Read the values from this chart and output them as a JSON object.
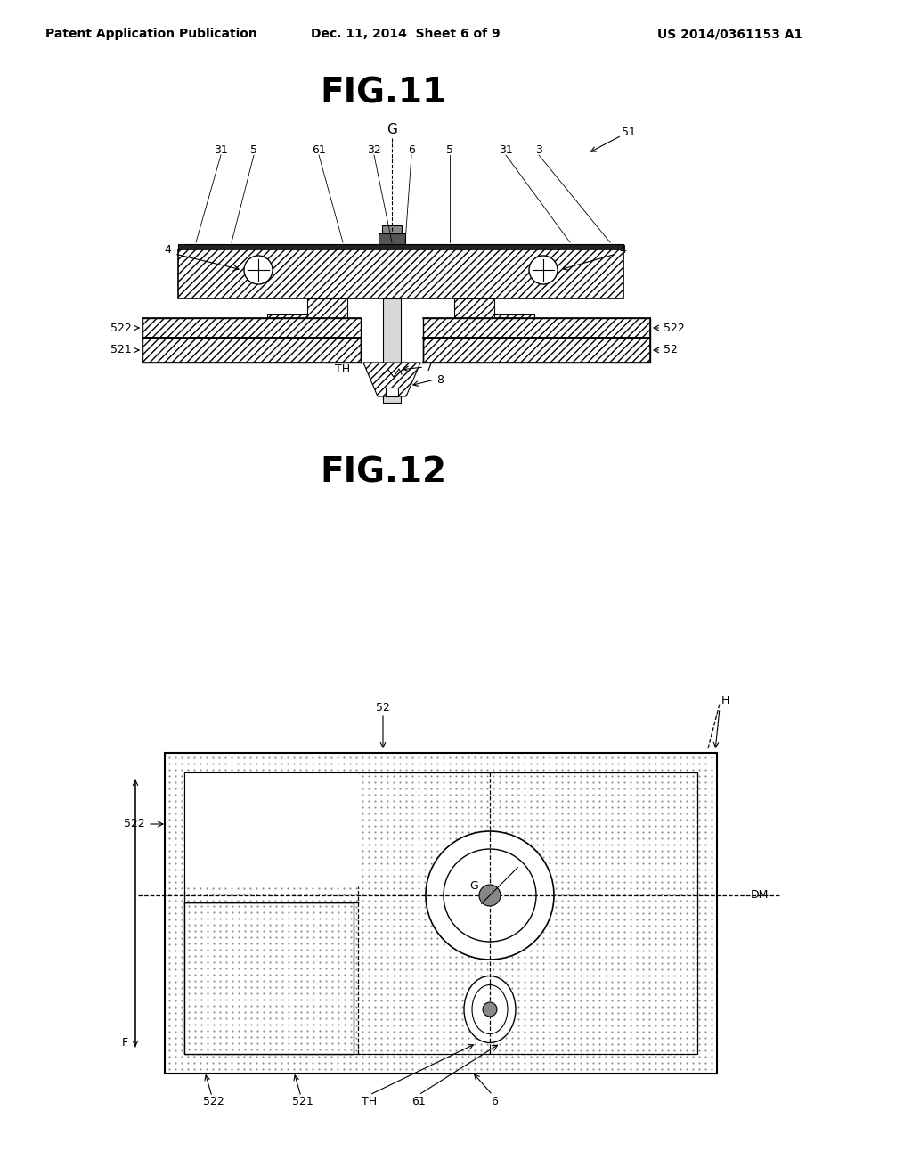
{
  "bg_color": "#ffffff",
  "header_left": "Patent Application Publication",
  "header_center": "Dec. 11, 2014  Sheet 6 of 9",
  "header_right": "US 2014/0361153 A1",
  "fig11_title": "FIG.11",
  "fig12_title": "FIG.12",
  "fig11": {
    "label_G": "G",
    "label_51": "51",
    "label_31_left": "31",
    "label_5_left": "5",
    "label_61": "61",
    "label_32": "32",
    "label_6": "6",
    "label_5_right": "5",
    "label_31_right": "31",
    "label_3": "3",
    "label_4_left": "4",
    "label_4_right": "4",
    "label_522_left": "522",
    "label_522_right": "522",
    "label_521": "521",
    "label_52": "52",
    "label_8": "8",
    "label_TH": "TH",
    "label_7": "7"
  },
  "fig12": {
    "label_52": "52",
    "label_H": "H",
    "label_522_left": "522",
    "label_522_bottom": "522",
    "label_521": "521",
    "label_TH": "TH",
    "label_61": "61",
    "label_6": "6",
    "label_DM": "DM",
    "label_F": "F",
    "label_G": "G"
  }
}
